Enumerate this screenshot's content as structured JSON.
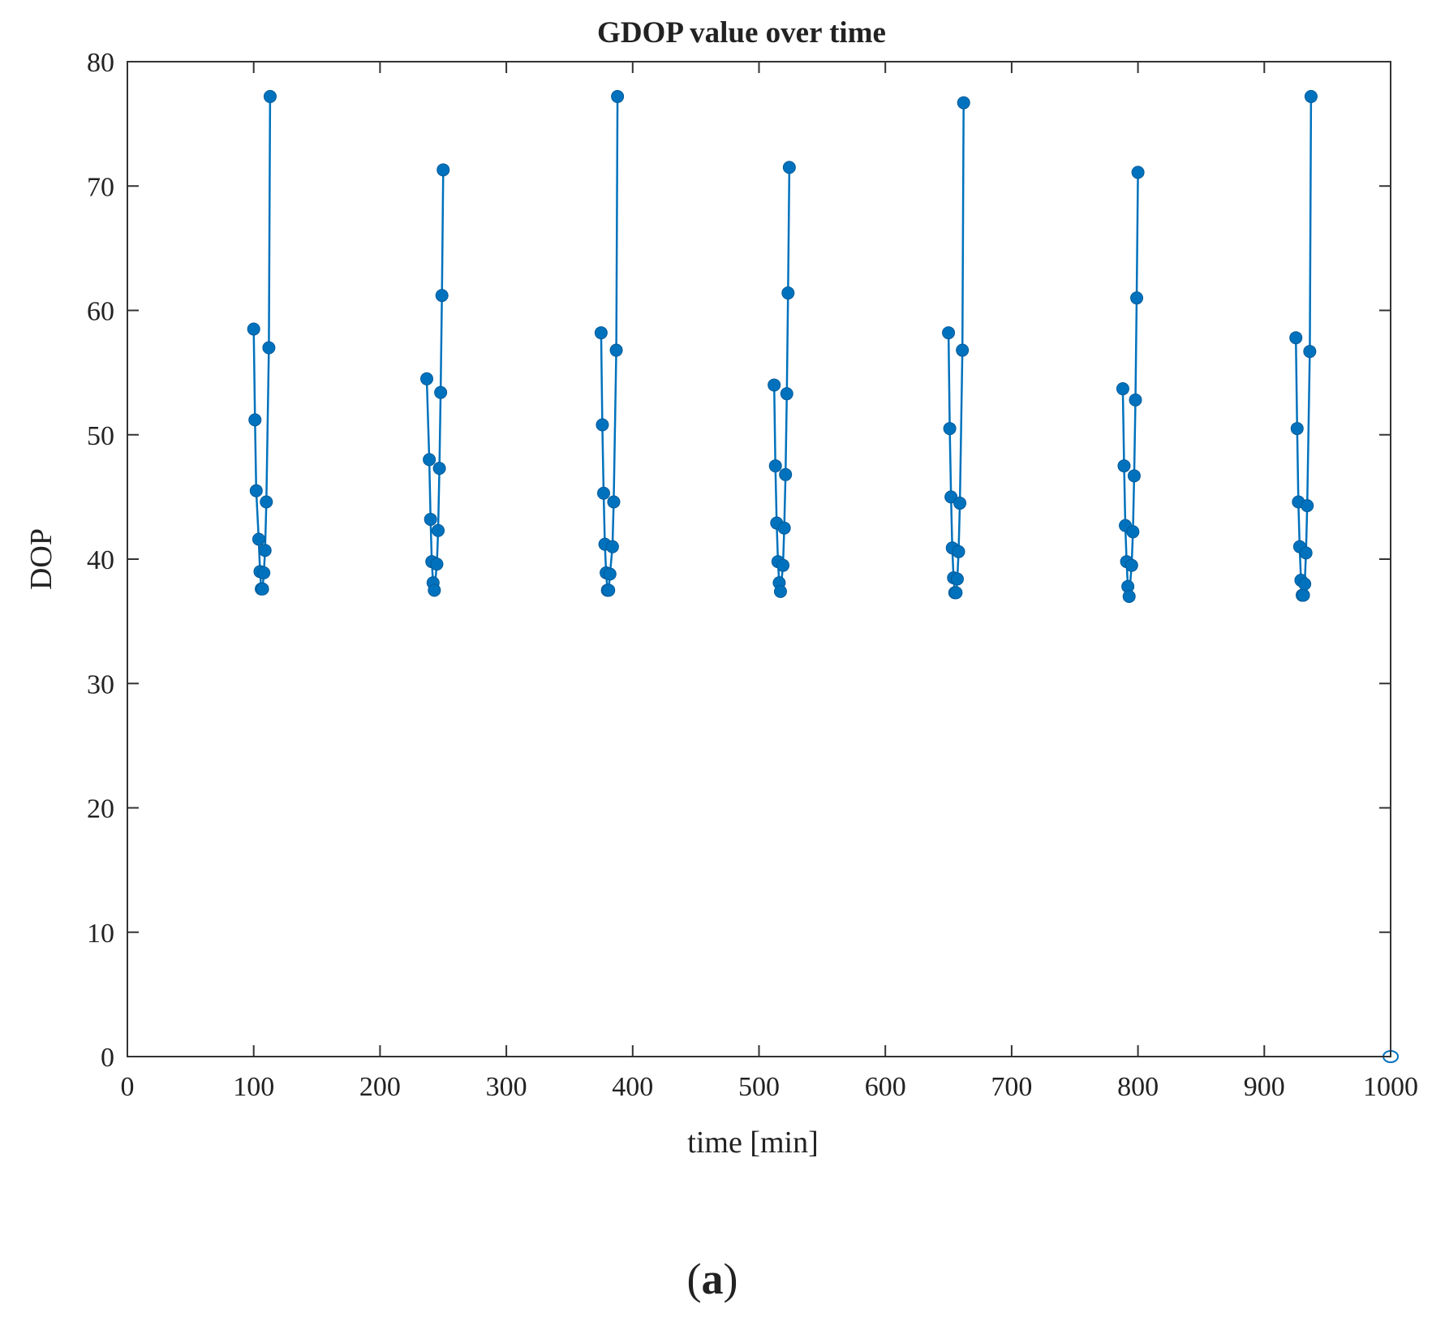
{
  "chart_data": {
    "type": "line",
    "title": "GDOP value over time",
    "xlabel": "time [min]",
    "ylabel": "DOP",
    "xlim": [
      0,
      1000
    ],
    "ylim": [
      0,
      80
    ],
    "xticks": [
      "0",
      "100",
      "200",
      "300",
      "400",
      "500",
      "600",
      "700",
      "800",
      "900",
      "1000"
    ],
    "yticks": [
      "0",
      "10",
      "20",
      "30",
      "40",
      "50",
      "60",
      "70",
      "80"
    ],
    "grid": false,
    "legend": "none",
    "series": [
      {
        "color": "#0072BD",
        "marker": "circle",
        "segments": [
          {
            "x": [
              100,
              101,
              102,
              104,
              105,
              106,
              107,
              108,
              109,
              110,
              112,
              113
            ],
            "y": [
              58.5,
              51.2,
              45.5,
              41.6,
              39.0,
              37.6,
              37.6,
              38.9,
              40.7,
              44.6,
              57.0,
              77.2
            ]
          },
          {
            "x": [
              237,
              239,
              240,
              241,
              242,
              243,
              245,
              246,
              247,
              248,
              249,
              250
            ],
            "y": [
              54.5,
              48.0,
              43.2,
              39.8,
              38.1,
              37.5,
              39.6,
              42.3,
              47.3,
              53.4,
              61.2,
              71.3
            ]
          },
          {
            "x": [
              375,
              376,
              377,
              378,
              379,
              380,
              381,
              382,
              384,
              385,
              387,
              388
            ],
            "y": [
              58.2,
              50.8,
              45.3,
              41.2,
              38.9,
              37.5,
              37.5,
              38.8,
              41.0,
              44.6,
              56.8,
              77.2
            ]
          },
          {
            "x": [
              512,
              513,
              514,
              515,
              516,
              517,
              519,
              520,
              521,
              522,
              523,
              524
            ],
            "y": [
              54.0,
              47.5,
              42.9,
              39.8,
              38.1,
              37.4,
              39.5,
              42.5,
              46.8,
              53.3,
              61.4,
              71.5
            ]
          },
          {
            "x": [
              650,
              651,
              652,
              653,
              654,
              655,
              656,
              657,
              658,
              659,
              661,
              662
            ],
            "y": [
              58.2,
              50.5,
              45.0,
              40.9,
              38.5,
              37.3,
              37.3,
              38.4,
              40.6,
              44.5,
              56.8,
              76.7
            ]
          },
          {
            "x": [
              788,
              789,
              790,
              791,
              792,
              793,
              795,
              796,
              797,
              798,
              799,
              800
            ],
            "y": [
              53.7,
              47.5,
              42.7,
              39.8,
              37.8,
              37.0,
              39.5,
              42.2,
              46.7,
              52.8,
              61.0,
              71.1
            ]
          },
          {
            "x": [
              925,
              926,
              927,
              928,
              929,
              930,
              931,
              932,
              933,
              934,
              936,
              937
            ],
            "y": [
              57.8,
              50.5,
              44.6,
              41.0,
              38.3,
              37.1,
              37.1,
              38.0,
              40.5,
              44.3,
              56.7,
              77.2
            ]
          }
        ]
      }
    ]
  },
  "caption": {
    "open_paren": "(",
    "letter": "a",
    "close_paren": ")"
  }
}
